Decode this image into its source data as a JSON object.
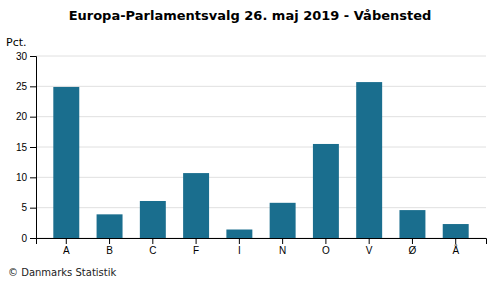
{
  "chart_data": {
    "type": "bar",
    "title": "Europa-Parlamentsvalg 26. maj 2019 - Våbensted",
    "categories": [
      "A",
      "B",
      "C",
      "F",
      "I",
      "N",
      "O",
      "V",
      "Ø",
      "Å"
    ],
    "values": [
      24.9,
      3.9,
      6.1,
      10.7,
      1.4,
      5.8,
      15.5,
      25.7,
      4.6,
      2.3
    ],
    "color": "#1a6e8e",
    "ylabel": "Pct.",
    "footer": "© Danmarks Statistik",
    "ylim": [
      0,
      30
    ],
    "yticks": [
      0,
      5,
      10,
      15,
      20,
      25,
      30
    ],
    "grid": true
  }
}
